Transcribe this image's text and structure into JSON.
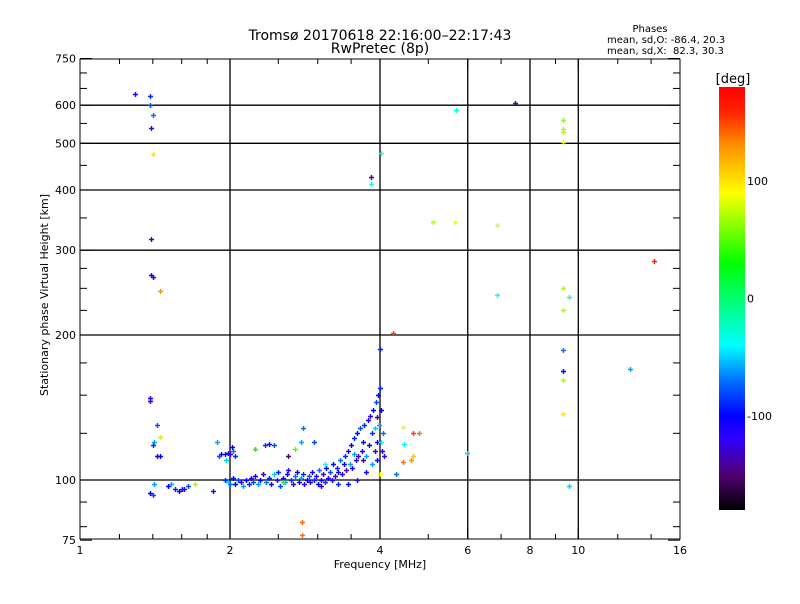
{
  "chart_data": {
    "type": "scatter",
    "title": "Tromsø 20170618 22:16:00–22:17:43",
    "subtitle": "RwPretec (8p)",
    "stats": {
      "heading": "Phases",
      "line_o": "mean, sd,O: -86.4, 20.3",
      "line_x": "mean, sd,X:  82.3, 30.3"
    },
    "xlabel": "Frequency [MHz]",
    "ylabel": "Stationary phase Virtual Height [km]",
    "xscale": "log",
    "yscale": "log",
    "xlim": [
      1,
      16
    ],
    "ylim": [
      75,
      750
    ],
    "xticks": [
      1,
      2,
      4,
      6,
      8,
      10,
      16
    ],
    "xtick_labels": [
      "1",
      "2",
      "4",
      "6",
      "8",
      "10",
      "16"
    ],
    "xgrid": [
      2,
      4,
      6,
      8,
      10
    ],
    "xminor": [
      1.2,
      1.4,
      1.6,
      1.8,
      2.5,
      3,
      3.5,
      5,
      7,
      9,
      12,
      14
    ],
    "yticks": [
      75,
      100,
      200,
      300,
      400,
      500,
      600,
      750
    ],
    "ytick_labels": [
      "75",
      "100",
      "200",
      "300",
      "400",
      "500",
      "600",
      "750"
    ],
    "ygrid": [
      100,
      200,
      300,
      400,
      500,
      600
    ],
    "yminor": [
      80,
      90,
      125,
      150,
      175,
      225,
      250,
      275,
      350,
      450,
      550,
      650,
      700
    ],
    "colorbar": {
      "label": "[deg]",
      "range": [
        -180,
        180
      ],
      "ticks": [
        100,
        0,
        -100
      ],
      "tick_labels": [
        "100",
        "0",
        "-100"
      ],
      "stops": [
        {
          "v": -180,
          "c": "#000000"
        },
        {
          "v": -150,
          "c": "#500070"
        },
        {
          "v": -120,
          "c": "#3000ff"
        },
        {
          "v": -100,
          "c": "#0000ff"
        },
        {
          "v": -70,
          "c": "#0070ff"
        },
        {
          "v": -40,
          "c": "#00ffff"
        },
        {
          "v": 0,
          "c": "#00ff70"
        },
        {
          "v": 30,
          "c": "#00ff00"
        },
        {
          "v": 90,
          "c": "#ffff00"
        },
        {
          "v": 130,
          "c": "#ff9000"
        },
        {
          "v": 160,
          "c": "#ff2000"
        },
        {
          "v": 180,
          "c": "#ff0000"
        }
      ]
    },
    "points_columns": [
      "frequency_MHz",
      "height_km",
      "phase_deg"
    ],
    "points": [
      [
        1.29,
        632,
        -110
      ],
      [
        1.38,
        626,
        -90
      ],
      [
        1.38,
        600,
        -80
      ],
      [
        1.4,
        572,
        -70
      ],
      [
        1.39,
        537,
        -130
      ],
      [
        1.4,
        475,
        100
      ],
      [
        1.39,
        316,
        -140
      ],
      [
        1.39,
        267,
        -115
      ],
      [
        1.4,
        264,
        -110
      ],
      [
        1.45,
        247,
        130
      ],
      [
        1.38,
        148,
        -110
      ],
      [
        1.38,
        146,
        -110
      ],
      [
        1.43,
        130,
        -80
      ],
      [
        1.45,
        123,
        75
      ],
      [
        1.4,
        118,
        -90
      ],
      [
        1.43,
        112,
        -130
      ],
      [
        1.45,
        112,
        -100
      ],
      [
        1.41,
        120,
        -60
      ],
      [
        1.38,
        94,
        -100
      ],
      [
        1.4,
        93,
        -80
      ],
      [
        1.41,
        98,
        -60
      ],
      [
        7.47,
        605,
        -140
      ],
      [
        5.68,
        585,
        -30
      ],
      [
        9.3,
        560,
        65
      ],
      [
        9.3,
        535,
        70
      ],
      [
        9.3,
        528,
        70
      ],
      [
        9.3,
        503,
        95
      ],
      [
        4.01,
        478,
        -40
      ],
      [
        3.83,
        425,
        -140
      ],
      [
        3.83,
        412,
        -40
      ],
      [
        5.11,
        343,
        70
      ],
      [
        5.65,
        343,
        85
      ],
      [
        6.86,
        338,
        80
      ],
      [
        14.2,
        285,
        160
      ],
      [
        9.3,
        250,
        70
      ],
      [
        9.6,
        240,
        -40
      ],
      [
        6.86,
        242,
        -40
      ],
      [
        9.3,
        225,
        70
      ],
      [
        4.25,
        202,
        150
      ],
      [
        4.0,
        187,
        -90
      ],
      [
        9.3,
        186,
        -70
      ],
      [
        12.7,
        170,
        -60
      ],
      [
        9.3,
        168,
        -100
      ],
      [
        9.3,
        161,
        70
      ],
      [
        9.3,
        137,
        100
      ],
      [
        9.6,
        97,
        -50
      ],
      [
        5.98,
        114,
        -50
      ],
      [
        4.45,
        129,
        95
      ],
      [
        4.47,
        119,
        -40
      ],
      [
        4.8,
        125,
        140
      ],
      [
        4.45,
        109,
        140
      ],
      [
        4.66,
        112,
        110
      ],
      [
        4.0,
        103,
        90
      ],
      [
        4.3,
        103,
        -70
      ],
      [
        4.66,
        125,
        150
      ],
      [
        4.62,
        110,
        130
      ],
      [
        2.79,
        82,
        140
      ],
      [
        2.79,
        77,
        140
      ],
      [
        1.5,
        97,
        -100
      ],
      [
        1.55,
        96,
        -90
      ],
      [
        1.6,
        96,
        -110
      ],
      [
        1.65,
        97,
        -80
      ],
      [
        1.7,
        98,
        70
      ],
      [
        1.52,
        98,
        -60
      ],
      [
        1.58,
        95,
        -100
      ],
      [
        1.62,
        96,
        -120
      ],
      [
        1.85,
        95,
        -120
      ],
      [
        1.92,
        113,
        -100
      ],
      [
        1.95,
        113,
        -110
      ],
      [
        1.98,
        114,
        -130
      ],
      [
        2.0,
        113,
        -120
      ],
      [
        2.03,
        115,
        -70
      ],
      [
        2.05,
        112,
        -90
      ],
      [
        1.9,
        112,
        -80
      ],
      [
        1.96,
        110,
        -50
      ],
      [
        2.02,
        117,
        -100
      ],
      [
        1.88,
        120,
        -60
      ],
      [
        1.95,
        100,
        -90
      ],
      [
        1.98,
        99,
        -50
      ],
      [
        2.0,
        98,
        -70
      ],
      [
        2.03,
        101,
        -110
      ],
      [
        2.05,
        98,
        -100
      ],
      [
        2.08,
        100,
        -80
      ],
      [
        2.1,
        99,
        -120
      ],
      [
        2.12,
        97,
        -60
      ],
      [
        2.15,
        100,
        -100
      ],
      [
        2.18,
        98,
        -90
      ],
      [
        2.2,
        101,
        -120
      ],
      [
        2.22,
        99,
        -80
      ],
      [
        2.25,
        102,
        -110
      ],
      [
        2.28,
        98,
        -60
      ],
      [
        2.3,
        100,
        -100
      ],
      [
        2.33,
        103,
        -130
      ],
      [
        2.36,
        99,
        -70
      ],
      [
        2.4,
        101,
        -90
      ],
      [
        2.42,
        98,
        -110
      ],
      [
        2.45,
        103,
        -50
      ],
      [
        2.48,
        100,
        -120
      ],
      [
        2.5,
        104,
        -90
      ],
      [
        2.52,
        97,
        -80
      ],
      [
        2.55,
        101,
        -110
      ],
      [
        2.58,
        99,
        -60
      ],
      [
        2.6,
        103,
        -100
      ],
      [
        2.62,
        105,
        -120
      ],
      [
        2.65,
        100,
        -90
      ],
      [
        2.68,
        98,
        -130
      ],
      [
        2.7,
        102,
        -70
      ],
      [
        2.72,
        104,
        -100
      ],
      [
        2.75,
        99,
        -110
      ],
      [
        2.78,
        101,
        -60
      ],
      [
        2.8,
        103,
        -90
      ],
      [
        2.82,
        98,
        -120
      ],
      [
        2.85,
        100,
        -100
      ],
      [
        2.88,
        102,
        -80
      ],
      [
        2.9,
        99,
        -130
      ],
      [
        2.92,
        104,
        -110
      ],
      [
        2.95,
        100,
        -90
      ],
      [
        2.98,
        102,
        -120
      ],
      [
        3.0,
        98,
        -100
      ],
      [
        3.02,
        105,
        -70
      ],
      [
        3.05,
        100,
        -110
      ],
      [
        3.08,
        103,
        -130
      ],
      [
        3.1,
        99,
        -90
      ],
      [
        3.12,
        106,
        -100
      ],
      [
        3.15,
        101,
        -120
      ],
      [
        3.18,
        104,
        -80
      ],
      [
        3.2,
        100,
        -110
      ],
      [
        3.22,
        108,
        -100
      ],
      [
        3.25,
        102,
        -130
      ],
      [
        3.28,
        106,
        -90
      ],
      [
        3.3,
        104,
        -110
      ],
      [
        3.32,
        110,
        -70
      ],
      [
        3.35,
        103,
        -120
      ],
      [
        3.38,
        108,
        -100
      ],
      [
        3.4,
        112,
        -90
      ],
      [
        3.42,
        105,
        -130
      ],
      [
        3.45,
        115,
        -110
      ],
      [
        3.48,
        108,
        -60
      ],
      [
        3.5,
        118,
        -100
      ],
      [
        3.52,
        106,
        -120
      ],
      [
        3.55,
        122,
        -90
      ],
      [
        3.58,
        110,
        -110
      ],
      [
        3.6,
        125,
        -100
      ],
      [
        3.62,
        112,
        -130
      ],
      [
        3.65,
        128,
        -80
      ],
      [
        3.68,
        115,
        -110
      ],
      [
        3.7,
        120,
        -100
      ],
      [
        3.72,
        130,
        -90
      ],
      [
        3.75,
        112,
        -60
      ],
      [
        3.78,
        133,
        -110
      ],
      [
        3.8,
        118,
        -100
      ],
      [
        3.82,
        136,
        -120
      ],
      [
        3.85,
        125,
        -90
      ],
      [
        3.88,
        140,
        -100
      ],
      [
        3.9,
        115,
        -130
      ],
      [
        3.92,
        145,
        -80
      ],
      [
        3.95,
        120,
        -110
      ],
      [
        3.97,
        150,
        -100
      ],
      [
        3.98,
        130,
        -60
      ],
      [
        4.0,
        155,
        -90
      ],
      [
        4.02,
        140,
        -100
      ],
      [
        4.03,
        115,
        -110
      ],
      [
        4.05,
        125,
        -70
      ],
      [
        4.07,
        112,
        -120
      ],
      [
        3.94,
        110,
        -100
      ],
      [
        3.85,
        108,
        -60
      ],
      [
        3.75,
        104,
        -110
      ],
      [
        3.6,
        100,
        -120
      ],
      [
        3.45,
        98,
        -100
      ],
      [
        3.3,
        98,
        -90
      ],
      [
        2.35,
        118,
        -90
      ],
      [
        2.4,
        119,
        -110
      ],
      [
        2.45,
        118,
        -80
      ],
      [
        2.25,
        116,
        30
      ],
      [
        2.8,
        128,
        -70
      ],
      [
        2.78,
        120,
        -60
      ],
      [
        2.95,
        120,
        -80
      ],
      [
        2.7,
        116,
        50
      ],
      [
        3.1,
        108,
        -40
      ],
      [
        2.62,
        112,
        -150
      ],
      [
        3.95,
        135,
        -140
      ],
      [
        3.9,
        128,
        -50
      ],
      [
        4.02,
        120,
        -30
      ],
      [
        3.7,
        110,
        -140
      ],
      [
        3.55,
        113,
        -60
      ],
      [
        2.55,
        99,
        20
      ],
      [
        3.05,
        97,
        -140
      ]
    ]
  }
}
